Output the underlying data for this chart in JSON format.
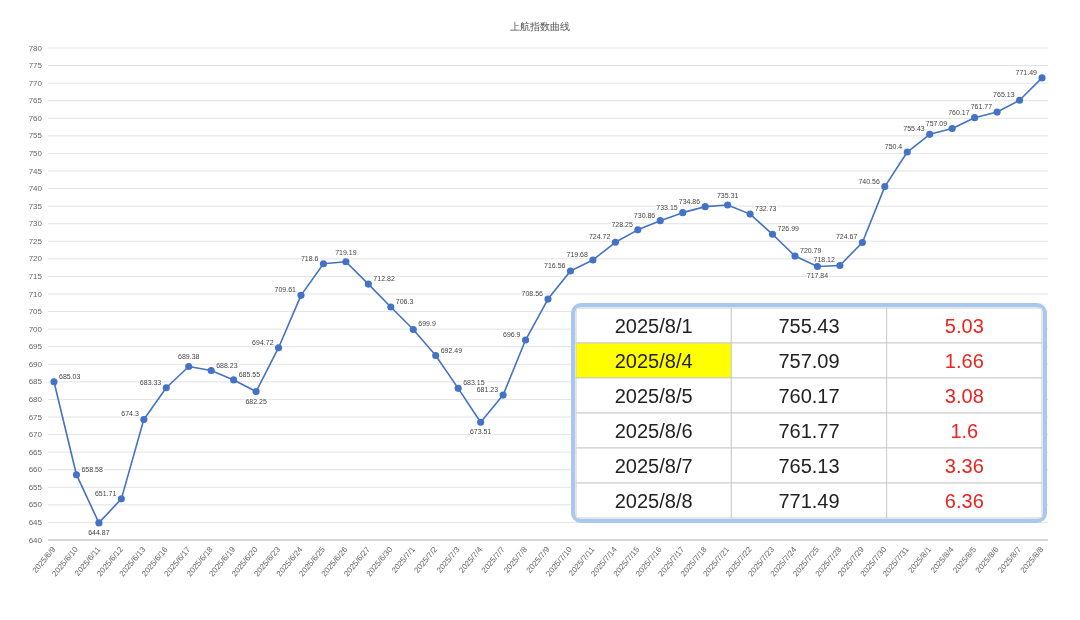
{
  "chart_data": {
    "type": "line",
    "title": "上航指数曲线",
    "categories": [
      "2025/6/9",
      "2025/6/10",
      "2025/6/11",
      "2025/6/12",
      "2025/6/13",
      "2025/6/16",
      "2025/6/17",
      "2025/6/18",
      "2025/6/19",
      "2025/6/20",
      "2025/6/23",
      "2025/6/24",
      "2025/6/25",
      "2025/6/26",
      "2025/6/27",
      "2025/6/30",
      "2025/7/1",
      "2025/7/2",
      "2025/7/3",
      "2025/7/4",
      "2025/7/7",
      "2025/7/8",
      "2025/7/9",
      "2025/7/10",
      "2025/7/11",
      "2025/7/14",
      "2025/7/15",
      "2025/7/16",
      "2025/7/17",
      "2025/7/18",
      "2025/7/21",
      "2025/7/22",
      "2025/7/23",
      "2025/7/24",
      "2025/7/25",
      "2025/7/28",
      "2025/7/29",
      "2025/7/30",
      "2025/7/31",
      "2025/8/1",
      "2025/8/4",
      "2025/8/5",
      "2025/8/6",
      "2025/8/7",
      "2025/8/8"
    ],
    "series": [
      {
        "color": "#4472c4",
        "values": [
          685.03,
          658.58,
          644.87,
          651.71,
          674.3,
          683.33,
          689.38,
          688.23,
          685.55,
          682.25,
          694.72,
          709.61,
          718.6,
          719.19,
          712.82,
          706.3,
          699.9,
          692.49,
          683.15,
          673.51,
          681.23,
          696.9,
          708.56,
          716.56,
          719.68,
          724.72,
          728.25,
          730.86,
          733.15,
          734.86,
          735.31,
          732.73,
          726.99,
          720.79,
          717.84,
          718.12,
          724.67,
          740.56,
          750.4,
          755.43,
          757.09,
          760.17,
          761.77,
          765.13,
          771.49
        ]
      }
    ],
    "ylim": [
      640,
      780
    ],
    "yticks": [
      640,
      645,
      650,
      655,
      660,
      665,
      670,
      675,
      680,
      685,
      690,
      695,
      700,
      705,
      710,
      715,
      720,
      725,
      730,
      735,
      740,
      745,
      750,
      755,
      760,
      765,
      770,
      775,
      780
    ],
    "grid": "y",
    "marker": "circle",
    "data_labels": true,
    "annotations": [
      "2025/8/1",
      "755.43",
      "5.03",
      "2025/8/4",
      "757.09",
      "1.66",
      "2025/8/5",
      "760.17",
      "3.08",
      "2025/8/6",
      "761.77",
      "1.6",
      "2025/8/7",
      "765.13",
      "3.36",
      "2025/8/8",
      "771.49",
      "6.36"
    ]
  }
}
